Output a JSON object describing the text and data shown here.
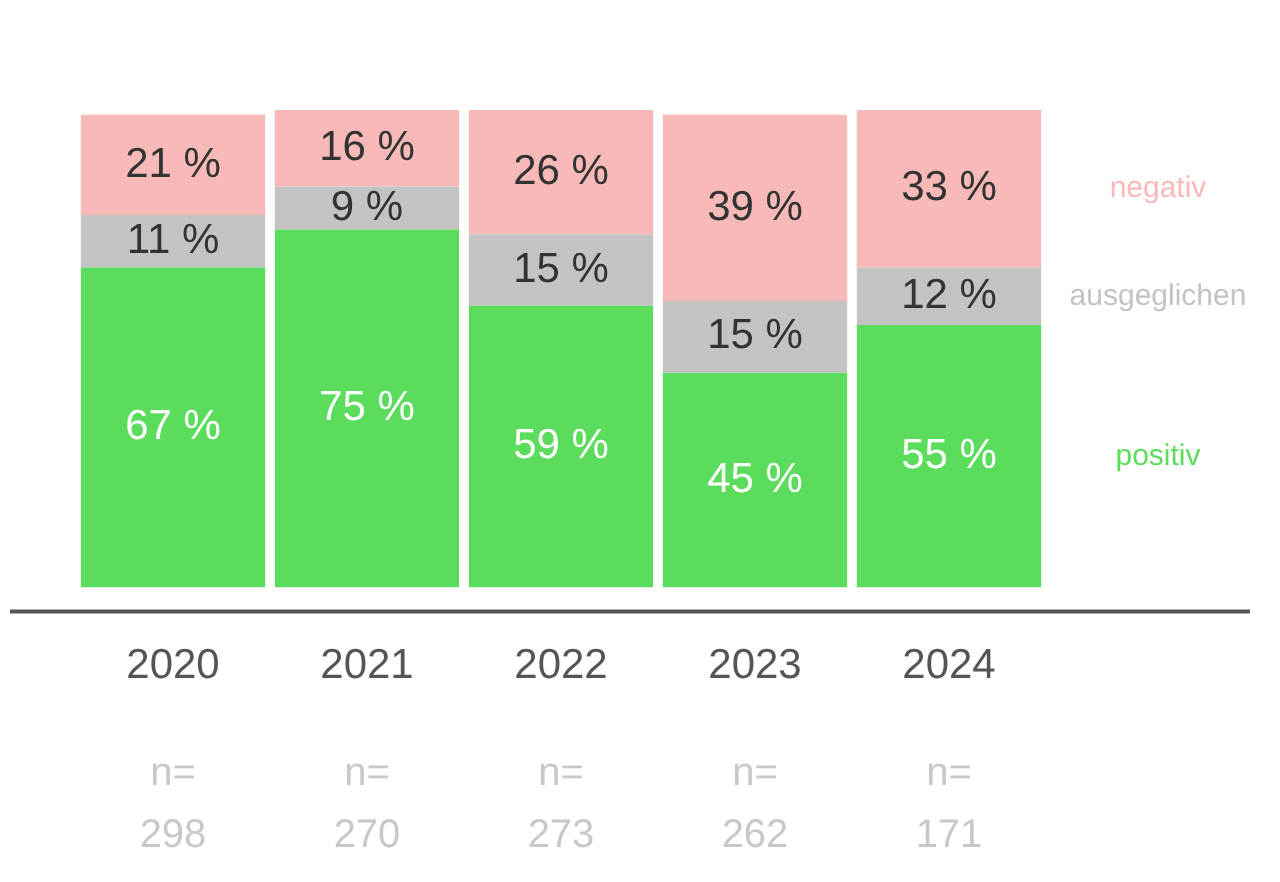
{
  "chart_data": {
    "type": "bar",
    "stacked": true,
    "categories": [
      "2020",
      "2021",
      "2022",
      "2023",
      "2024"
    ],
    "series": [
      {
        "name": "positiv",
        "color": "#5cdc5c",
        "values": [
          67,
          75,
          59,
          45,
          55
        ],
        "value_labels": [
          "67 %",
          "75 %",
          "59 %",
          "45 %",
          "55 %"
        ]
      },
      {
        "name": "ausgeglichen",
        "color": "#c3c3c3",
        "values": [
          11,
          9,
          15,
          15,
          12
        ],
        "value_labels": [
          "11 %",
          "9 %",
          "15 %",
          "15 %",
          "12 %"
        ]
      },
      {
        "name": "negativ",
        "color": "#f8b9b9",
        "values": [
          21,
          16,
          26,
          39,
          33
        ],
        "value_labels": [
          "21 %",
          "16 %",
          "26 %",
          "39 %",
          "33 %"
        ]
      }
    ],
    "annotations": [
      "n=\n298",
      "n=\n270",
      "n=\n273",
      "n=\n262",
      "n=\n171"
    ],
    "legend": false,
    "grid": false
  }
}
